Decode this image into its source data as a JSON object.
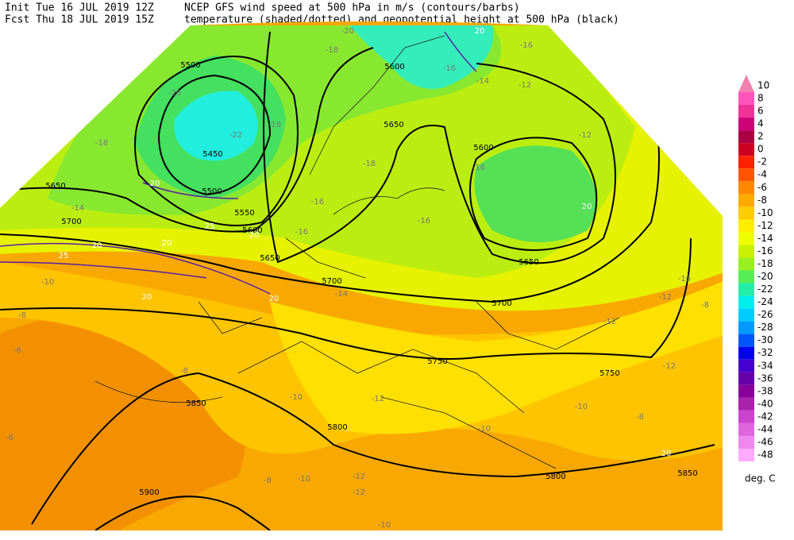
{
  "header": {
    "init": "Init  Tue 16 JUL 2019 12Z",
    "fcst": "Fcst Thu 18 JUL 2019 15Z",
    "title1": "NCEP GFS wind speed at 500 hPa in m/s (contours/barbs)",
    "title2": "temperature (shaded/dotted) and geopotential height at 500 hPa (black)"
  },
  "map": {
    "height_labels": [
      5500,
      5450,
      5500,
      5550,
      5600,
      5650,
      5700,
      5650,
      5700,
      5650,
      5600,
      5650,
      5700,
      5750,
      5750,
      5800,
      5800,
      5850,
      5900,
      5850,
      5600
    ],
    "temperature_labels": [
      -20,
      -18,
      -20,
      -22,
      -16,
      -14,
      -18,
      -16,
      -16,
      -18,
      -16,
      -16,
      -12,
      -12,
      -14,
      -16,
      -16,
      -10,
      -14,
      -16,
      -12,
      -8,
      -12,
      -8,
      -6,
      -8,
      -10,
      -12,
      -10,
      -12,
      -10,
      -12,
      -8,
      -6,
      -8,
      -10,
      -12,
      -10
    ],
    "wind_labels": [
      20,
      20,
      20,
      25,
      20,
      20,
      25,
      20,
      20,
      20,
      20
    ]
  },
  "colorbar": {
    "labels": [
      10,
      8,
      6,
      4,
      2,
      0,
      -2,
      -4,
      -6,
      -8,
      -10,
      -12,
      -14,
      -16,
      -18,
      -20,
      -22,
      -24,
      -26,
      -28,
      -30,
      -32,
      -34,
      -36,
      -38,
      -40,
      -42,
      -44,
      -46,
      -48
    ],
    "colors": [
      "#f080b0",
      "#ff55bb",
      "#ee3399",
      "#cc0077",
      "#aa0044",
      "#cc0022",
      "#ff2200",
      "#ff5500",
      "#ff8800",
      "#ffaa00",
      "#ffcc00",
      "#ffee00",
      "#eeff00",
      "#c8f000",
      "#99ee22",
      "#55ee55",
      "#22eeaa",
      "#00eeee",
      "#00ccff",
      "#0099ff",
      "#0055ff",
      "#0000ee",
      "#4400cc",
      "#6600aa",
      "#880099",
      "#aa22aa",
      "#cc44cc",
      "#dd66dd",
      "#ee88ee",
      "#ffaaff"
    ],
    "unit": "deg. C"
  }
}
